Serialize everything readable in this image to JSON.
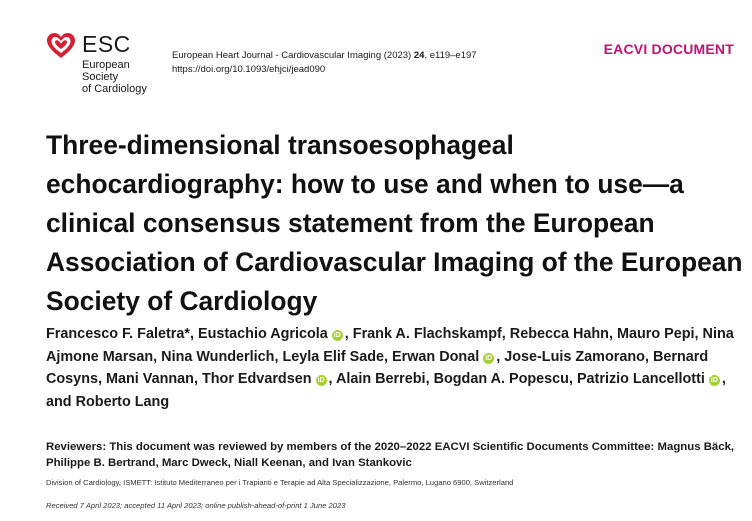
{
  "logo": {
    "name": "ESC",
    "line1": "European Society",
    "line2": "of Cardiology"
  },
  "journal": {
    "citation_prefix": "European Heart Journal - Cardiovascular Imaging (2023) ",
    "volume": "24",
    "pages": ", e119–e197",
    "doi": "https://doi.org/10.1093/ehjci/jead090"
  },
  "document_type": "EACVI DOCUMENT",
  "title": "Three-dimensional transoesophageal echocardiography: how to use and when to use—a clinical consensus statement from the European Association of Cardiovascular Imaging of the European Society of Cardiology",
  "authors": [
    {
      "name": "Francesco F. Faletra*",
      "orcid": false
    },
    {
      "name": "Eustachio Agricola",
      "orcid": true
    },
    {
      "name": "Frank A. Flachskampf",
      "orcid": false
    },
    {
      "name": "Rebecca Hahn",
      "orcid": false
    },
    {
      "name": "Mauro Pepi",
      "orcid": false
    },
    {
      "name": "Nina Ajmone Marsan",
      "orcid": false
    },
    {
      "name": "Nina Wunderlich",
      "orcid": false
    },
    {
      "name": "Leyla Elif Sade",
      "orcid": false
    },
    {
      "name": "Erwan Donal",
      "orcid": true
    },
    {
      "name": "Jose-Luis Zamorano",
      "orcid": false
    },
    {
      "name": "Bernard Cosyns",
      "orcid": false
    },
    {
      "name": "Mani Vannan",
      "orcid": false
    },
    {
      "name": "Thor Edvardsen",
      "orcid": true
    },
    {
      "name": "Alain Berrebi",
      "orcid": false
    },
    {
      "name": "Bogdan A. Popescu",
      "orcid": false
    },
    {
      "name": "Patrizio Lancellotti",
      "orcid": true
    },
    {
      "name": "Roberto Lang",
      "orcid": false
    }
  ],
  "authors_joiner": "and",
  "orcid_glyph": "iD",
  "reviewers": "Reviewers: This document was reviewed by members of the 2020–2022 EACVI Scientific Documents Committee: Magnus Bäck, Philippe B. Bertrand, Marc Dweck, Niall Keenan, and Ivan Stankovic",
  "affiliation": "Division of Cardiology, ISMETT: Istituto Mediterraneo per i Trapianti e Terapie ad Alta Specializzazione, Palermo, Lugano 6900, Switzerland",
  "dates": "Received 7 April 2023; accepted 11 April 2023; online publish-ahead-of-print 1 June 2023",
  "colors": {
    "accent": "#c0136f",
    "logo_red": "#d51f33",
    "orcid_green": "#a6ce39"
  }
}
